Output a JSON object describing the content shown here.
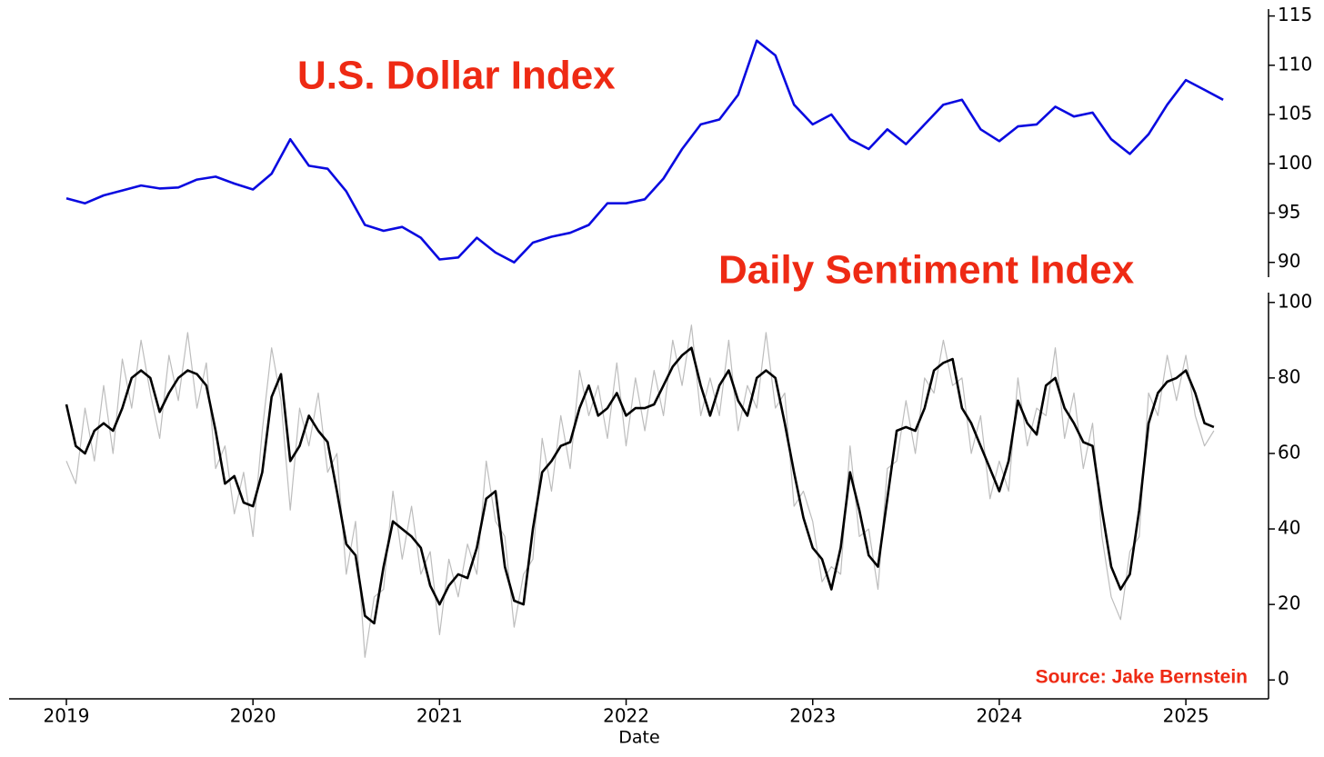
{
  "chart_data": [
    {
      "type": "line",
      "title": "U.S. Dollar Index",
      "x": [
        2019.0,
        2019.1,
        2019.2,
        2019.3,
        2019.4,
        2019.5,
        2019.6,
        2019.7,
        2019.8,
        2019.9,
        2020.0,
        2020.1,
        2020.2,
        2020.3,
        2020.4,
        2020.5,
        2020.6,
        2020.7,
        2020.8,
        2020.9,
        2021.0,
        2021.1,
        2021.2,
        2021.3,
        2021.4,
        2021.5,
        2021.6,
        2021.7,
        2021.8,
        2021.9,
        2022.0,
        2022.1,
        2022.2,
        2022.3,
        2022.4,
        2022.5,
        2022.6,
        2022.7,
        2022.8,
        2022.9,
        2023.0,
        2023.1,
        2023.2,
        2023.3,
        2023.4,
        2023.5,
        2023.6,
        2023.7,
        2023.8,
        2023.9,
        2024.0,
        2024.1,
        2024.2,
        2024.3,
        2024.4,
        2024.5,
        2024.6,
        2024.7,
        2024.8,
        2024.9,
        2025.0,
        2025.1,
        2025.2
      ],
      "series": [
        {
          "color": "#0a0ae0",
          "values": [
            96.5,
            96.0,
            96.8,
            97.3,
            97.8,
            97.5,
            97.6,
            98.4,
            98.7,
            98.0,
            97.4,
            99.0,
            102.5,
            99.8,
            99.5,
            97.2,
            93.8,
            93.2,
            93.6,
            92.5,
            90.3,
            90.5,
            92.5,
            91.0,
            90.0,
            92.0,
            92.6,
            93.0,
            93.8,
            96.0,
            96.0,
            96.4,
            98.5,
            101.5,
            104.0,
            104.5,
            107.0,
            112.5,
            111.0,
            106.0,
            104.0,
            105.0,
            102.5,
            101.5,
            103.5,
            102.0,
            104.0,
            106.0,
            106.5,
            103.5,
            102.3,
            103.8,
            104.0,
            105.8,
            104.8,
            105.2,
            102.5,
            101.0,
            103.0,
            106.0,
            108.5,
            107.5,
            106.5
          ]
        }
      ],
      "xlim": [
        2018.693,
        2025.443
      ],
      "ylim": [
        88.5,
        115.7
      ],
      "yticks": [
        90,
        95,
        100,
        105,
        110,
        115
      ]
    },
    {
      "type": "line",
      "title": "Daily Sentiment Index",
      "x_label": "Date",
      "annotation": "Source: Jake Bernstein",
      "x": [
        2019.0,
        2019.05,
        2019.1,
        2019.15,
        2019.2,
        2019.25,
        2019.3,
        2019.35,
        2019.4,
        2019.45,
        2019.5,
        2019.55,
        2019.6,
        2019.65,
        2019.7,
        2019.75,
        2019.8,
        2019.85,
        2019.9,
        2019.95,
        2020.0,
        2020.05,
        2020.1,
        2020.15,
        2020.2,
        2020.25,
        2020.3,
        2020.35,
        2020.4,
        2020.45,
        2020.5,
        2020.55,
        2020.6,
        2020.65,
        2020.7,
        2020.75,
        2020.8,
        2020.85,
        2020.9,
        2020.95,
        2021.0,
        2021.05,
        2021.1,
        2021.15,
        2021.2,
        2021.25,
        2021.3,
        2021.35,
        2021.4,
        2021.45,
        2021.5,
        2021.55,
        2021.6,
        2021.65,
        2021.7,
        2021.75,
        2021.8,
        2021.85,
        2021.9,
        2021.95,
        2022.0,
        2022.05,
        2022.1,
        2022.15,
        2022.2,
        2022.25,
        2022.3,
        2022.35,
        2022.4,
        2022.45,
        2022.5,
        2022.55,
        2022.6,
        2022.65,
        2022.7,
        2022.75,
        2022.8,
        2022.85,
        2022.9,
        2022.95,
        2023.0,
        2023.05,
        2023.1,
        2023.15,
        2023.2,
        2023.25,
        2023.3,
        2023.35,
        2023.4,
        2023.45,
        2023.5,
        2023.55,
        2023.6,
        2023.65,
        2023.7,
        2023.75,
        2023.8,
        2023.85,
        2023.9,
        2023.95,
        2024.0,
        2024.05,
        2024.1,
        2024.15,
        2024.2,
        2024.25,
        2024.3,
        2024.35,
        2024.4,
        2024.45,
        2024.5,
        2024.55,
        2024.6,
        2024.65,
        2024.7,
        2024.75,
        2024.8,
        2024.85,
        2024.9,
        2024.95,
        2025.0,
        2025.05,
        2025.1,
        2025.15
      ],
      "series": [
        {
          "color": "#bdbdbd",
          "values": [
            58,
            52,
            72,
            58,
            78,
            60,
            85,
            72,
            90,
            76,
            64,
            86,
            74,
            92,
            72,
            84,
            56,
            62,
            44,
            55,
            38,
            66,
            88,
            74,
            45,
            72,
            62,
            76,
            55,
            60,
            28,
            42,
            6,
            22,
            24,
            50,
            32,
            46,
            28,
            34,
            12,
            32,
            22,
            36,
            28,
            58,
            42,
            38,
            14,
            28,
            32,
            64,
            50,
            70,
            56,
            82,
            70,
            78,
            64,
            84,
            62,
            80,
            66,
            82,
            70,
            90,
            78,
            94,
            70,
            80,
            70,
            90,
            66,
            78,
            72,
            92,
            72,
            76,
            46,
            50,
            42,
            26,
            30,
            28,
            62,
            38,
            40,
            24,
            56,
            58,
            74,
            60,
            80,
            76,
            90,
            78,
            80,
            60,
            70,
            48,
            58,
            50,
            80,
            62,
            72,
            70,
            88,
            64,
            76,
            56,
            68,
            38,
            22,
            16,
            34,
            38,
            76,
            70,
            86,
            74,
            86,
            70,
            62,
            66
          ]
        },
        {
          "color": "#000000",
          "values": [
            73,
            62,
            60,
            66,
            68,
            66,
            72,
            80,
            82,
            80,
            71,
            76,
            80,
            82,
            81,
            78,
            66,
            52,
            54,
            47,
            46,
            55,
            75,
            81,
            58,
            62,
            70,
            66,
            63,
            50,
            36,
            33,
            17,
            15,
            30,
            42,
            40,
            38,
            35,
            25,
            20,
            25,
            28,
            27,
            35,
            48,
            50,
            30,
            21,
            20,
            40,
            55,
            58,
            62,
            63,
            72,
            78,
            70,
            72,
            76,
            70,
            72,
            72,
            73,
            78,
            83,
            86,
            88,
            78,
            70,
            78,
            82,
            74,
            70,
            80,
            82,
            80,
            68,
            55,
            43,
            35,
            32,
            24,
            35,
            55,
            45,
            33,
            30,
            48,
            66,
            67,
            66,
            72,
            82,
            84,
            85,
            72,
            68,
            62,
            56,
            50,
            58,
            74,
            68,
            65,
            78,
            80,
            72,
            68,
            63,
            62,
            45,
            30,
            24,
            28,
            45,
            68,
            76,
            79,
            80,
            82,
            76,
            68,
            67
          ]
        }
      ],
      "xlim": [
        2018.693,
        2025.443
      ],
      "xticks": [
        2019,
        2020,
        2021,
        2022,
        2023,
        2024,
        2025
      ],
      "ylim": [
        -5,
        102.6
      ],
      "yticks": [
        0,
        20,
        40,
        60,
        80,
        100
      ]
    }
  ]
}
